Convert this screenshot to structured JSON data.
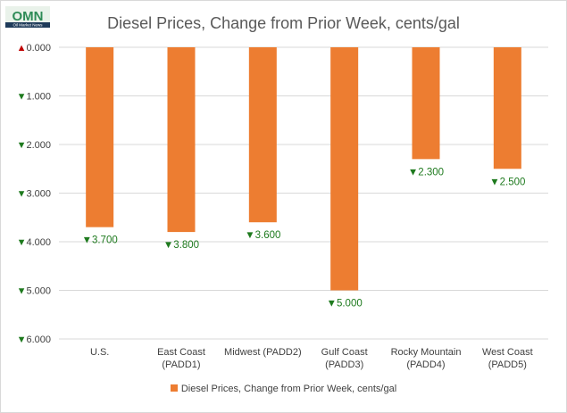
{
  "header": {
    "logo_text": "OMN",
    "logo_tagline": "Oil Market News"
  },
  "colors": {
    "bar": "#ed7d31",
    "grid": "#d9d9d9",
    "up_arrow": "#c00000",
    "down_arrow": "#1e7a1e",
    "label": "#1e7a1e"
  },
  "chart_data": {
    "type": "bar",
    "title": "Diesel Prices, Change from Prior Week, cents/gal",
    "categories": [
      [
        "U.S."
      ],
      [
        "East Coast",
        "(PADD1)"
      ],
      [
        "Midwest (PADD2)"
      ],
      [
        "Gulf Coast",
        "(PADD3)"
      ],
      [
        "Rocky Mountain",
        "(PADD4)"
      ],
      [
        "West Coast",
        "(PADD5)"
      ]
    ],
    "series": [
      {
        "name": "Diesel Prices, Change from Prior Week, cents/gal",
        "values": [
          -3.7,
          -3.8,
          -3.6,
          -5.0,
          -2.3,
          -2.5
        ],
        "labels": [
          "▼3.700",
          "▼3.800",
          "▼3.600",
          "▼5.000",
          "▼2.300",
          "▼2.500"
        ]
      }
    ],
    "y_ticks": [
      0,
      -1,
      -2,
      -3,
      -4,
      -5,
      -6
    ],
    "y_tick_labels": [
      "▲0.000",
      "▼1.000",
      "▼2.000",
      "▼3.000",
      "▼4.000",
      "▼5.000",
      "▼6.000"
    ],
    "ylim": [
      -6,
      0
    ],
    "xlabel": "",
    "ylabel": "",
    "grid": true,
    "legend_position": "bottom"
  }
}
